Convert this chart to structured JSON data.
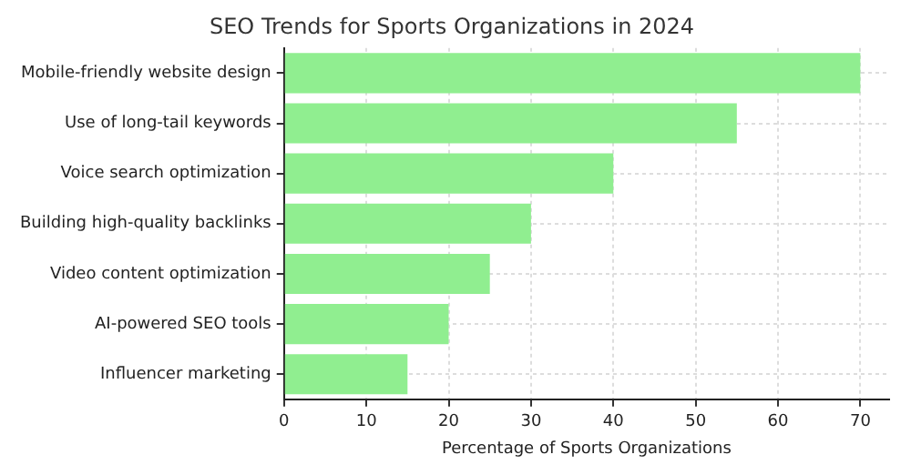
{
  "chart_data": {
    "type": "bar",
    "orientation": "horizontal",
    "title": "SEO Trends for Sports Organizations in 2024",
    "xlabel": "Percentage of Sports Organizations",
    "categories": [
      "Mobile-friendly website design",
      "Use of long-tail keywords",
      "Voice search optimization",
      "Building high-quality backlinks",
      "Video content optimization",
      "AI-powered SEO tools",
      "Influencer marketing"
    ],
    "values": [
      70,
      55,
      40,
      30,
      25,
      20,
      15
    ],
    "color": "#90ee90",
    "xlim": [
      0,
      73.5
    ],
    "xticks": [
      0,
      10,
      20,
      30,
      40,
      50,
      60,
      70
    ],
    "grid": true,
    "legend": false
  }
}
